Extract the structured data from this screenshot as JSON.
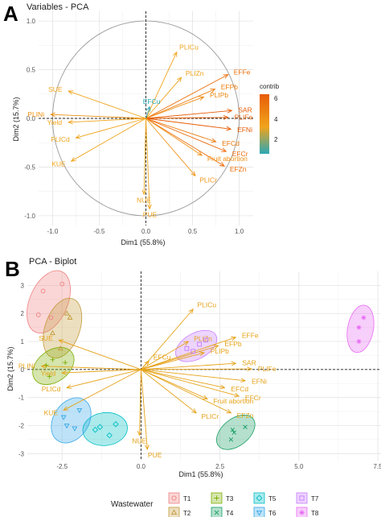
{
  "figure_label_a": "A",
  "figure_label_b": "B",
  "chart_data": [
    {
      "type": "scatter",
      "title": "Variables - PCA",
      "xlabel": "Dim1 (55.8%)",
      "ylabel": "Dim2 (15.7%)",
      "xlim": [
        -1.15,
        1.15
      ],
      "ylim": [
        -1.1,
        1.1
      ],
      "xticks": [
        -1.0,
        -0.5,
        0.0,
        0.5,
        1.0
      ],
      "yticks": [
        -1.0,
        -0.5,
        0.0,
        0.5,
        1.0
      ],
      "xtick_labels": [
        "-1.0",
        "-0.5",
        "0.0",
        "0.5",
        "1.0"
      ],
      "ytick_labels": [
        "-1.0",
        "-0.5",
        "0.0",
        "0.5",
        "1.0"
      ],
      "grid": true,
      "correlation_circle": true,
      "legend": {
        "title": "contrib",
        "position": "right",
        "ticks": [
          "6",
          "4",
          "2"
        ],
        "low_color": "#2aa8b5",
        "mid_color": "#f0a41c",
        "high_color": "#e85c07"
      },
      "variables": [
        {
          "name": "PLICu",
          "x": 0.33,
          "y": 0.68,
          "contrib": 3.2,
          "color": "#f0a41c"
        },
        {
          "name": "PLIZn",
          "x": 0.38,
          "y": 0.42,
          "contrib": 3.6,
          "color": "#f0a41c"
        },
        {
          "name": "EFFe",
          "x": 0.88,
          "y": 0.45,
          "contrib": 5.9,
          "color": "#ec6e0a"
        },
        {
          "name": "EFPb",
          "x": 0.74,
          "y": 0.3,
          "contrib": 5.0,
          "color": "#ee7f0e"
        },
        {
          "name": "PLIPb",
          "x": 0.62,
          "y": 0.22,
          "contrib": 4.6,
          "color": "#ef8c12"
        },
        {
          "name": "SAR",
          "x": 0.92,
          "y": 0.08,
          "contrib": 6.1,
          "color": "#e85c07"
        },
        {
          "name": "PLIFe",
          "x": 0.88,
          "y": 0.01,
          "contrib": 6.0,
          "color": "#e96208"
        },
        {
          "name": "EFNi",
          "x": 0.91,
          "y": -0.11,
          "contrib": 6.1,
          "color": "#e85c07"
        },
        {
          "name": "EFCd",
          "x": 0.75,
          "y": -0.24,
          "contrib": 5.2,
          "color": "#ed7a0d"
        },
        {
          "name": "EFCr",
          "x": 0.86,
          "y": -0.34,
          "contrib": 5.8,
          "color": "#ec6a0a"
        },
        {
          "name": "EFZn",
          "x": 0.84,
          "y": -0.49,
          "contrib": 5.6,
          "color": "#ec6e0a"
        },
        {
          "name": "Fruit abortion",
          "x": 0.6,
          "y": -0.38,
          "contrib": 4.3,
          "color": "#ef9012"
        },
        {
          "name": "PLICr",
          "x": 0.53,
          "y": -0.59,
          "contrib": 4.1,
          "color": "#f0961a"
        },
        {
          "name": "EFCu",
          "x": 0.04,
          "y": 0.12,
          "contrib": 1.5,
          "color": "#2aa8b5"
        },
        {
          "name": "NUE",
          "x": -0.02,
          "y": -0.78,
          "contrib": 3.3,
          "color": "#f0a41c"
        },
        {
          "name": "PUE",
          "x": 0.04,
          "y": -0.93,
          "contrib": 3.7,
          "color": "#f0a41c"
        },
        {
          "name": "SUE",
          "x": -0.83,
          "y": 0.28,
          "contrib": 3.4,
          "color": "#f0a41c"
        },
        {
          "name": "PLINi",
          "x": -1.02,
          "y": 0.04,
          "contrib": 4.3,
          "color": "#ef9012"
        },
        {
          "name": "Yield",
          "x": -0.83,
          "y": -0.04,
          "contrib": 3.3,
          "color": "#f0a41c"
        },
        {
          "name": "PLICd",
          "x": -0.75,
          "y": -0.2,
          "contrib": 2.7,
          "color": "#f0a41c"
        },
        {
          "name": "KUE",
          "x": -0.8,
          "y": -0.44,
          "contrib": 3.5,
          "color": "#f0a41c"
        }
      ]
    },
    {
      "type": "scatter",
      "title": "PCA - Biplot",
      "xlabel": "Dim1 (55.8%)",
      "ylabel": "Dim2 (15.7%)",
      "xlim": [
        -3.6,
        7.6
      ],
      "ylim": [
        -3.25,
        3.5
      ],
      "xticks": [
        -2.5,
        0.0,
        2.5,
        5.0,
        7.5
      ],
      "yticks": [
        -3,
        -2,
        -1,
        0,
        1,
        2,
        3
      ],
      "xtick_labels": [
        "-2.5",
        "0.0",
        "2.5",
        "5.0",
        "7.5"
      ],
      "ytick_labels": [
        "-3",
        "-2",
        "-1",
        "0",
        "1",
        "2",
        "3"
      ],
      "grid": true,
      "legend": {
        "title": "Wastewater",
        "position": "bottom"
      },
      "groups": [
        {
          "name": "T1",
          "color": "#f08080",
          "symbol": "circle",
          "points": [
            [
              -3.1,
              2.8
            ],
            [
              -2.5,
              3.05
            ],
            [
              -3.25,
              1.95
            ],
            [
              -2.85,
              1.85
            ]
          ]
        },
        {
          "name": "T2",
          "color": "#c49a3c",
          "symbol": "triangle",
          "points": [
            [
              -2.35,
              2.0
            ],
            [
              -2.25,
              1.85
            ],
            [
              -2.55,
              0.75
            ],
            [
              -2.8,
              1.3
            ]
          ]
        },
        {
          "name": "T3",
          "color": "#7cae00",
          "symbol": "plus",
          "points": [
            [
              -2.8,
              0.35
            ],
            [
              -3.0,
              0.15
            ],
            [
              -2.9,
              -0.25
            ],
            [
              -2.4,
              0.25
            ]
          ]
        },
        {
          "name": "T4",
          "color": "#1a9e65",
          "symbol": "x",
          "points": [
            [
              2.9,
              -2.15
            ],
            [
              2.95,
              -2.25
            ],
            [
              3.3,
              -2.05
            ],
            [
              2.85,
              -2.5
            ]
          ]
        },
        {
          "name": "T5",
          "color": "#00bfc4",
          "symbol": "diamond",
          "points": [
            [
              -1.3,
              -2.05
            ],
            [
              -0.8,
              -1.95
            ],
            [
              -1.0,
              -2.35
            ],
            [
              -1.45,
              -2.15
            ]
          ]
        },
        {
          "name": "T6",
          "color": "#35a7e8",
          "symbol": "triangle-down",
          "points": [
            [
              -2.35,
              -2.0
            ],
            [
              -1.95,
              -1.45
            ],
            [
              -2.45,
              -1.7
            ],
            [
              -2.1,
              -2.1
            ]
          ]
        },
        {
          "name": "T7",
          "color": "#c77cff",
          "symbol": "square",
          "points": [
            [
              1.45,
              0.75
            ],
            [
              1.65,
              0.65
            ],
            [
              2.05,
              1.05
            ],
            [
              1.85,
              0.9
            ]
          ]
        },
        {
          "name": "T8",
          "color": "#e76bf3",
          "symbol": "star",
          "points": [
            [
              6.9,
              1.5
            ],
            [
              7.05,
              1.85
            ],
            [
              6.9,
              1.0
            ]
          ]
        }
      ],
      "variables": [
        {
          "name": "PLICu",
          "x": 1.65,
          "y": 2.15
        },
        {
          "name": "PLIZn",
          "x": 1.5,
          "y": 1.0
        },
        {
          "name": "EFFe",
          "x": 3.0,
          "y": 1.15
        },
        {
          "name": "EFPb",
          "x": 2.45,
          "y": 0.85
        },
        {
          "name": "PLIPb",
          "x": 2.0,
          "y": 0.6
        },
        {
          "name": "SAR",
          "x": 3.0,
          "y": 0.22
        },
        {
          "name": "PLIFe",
          "x": 3.5,
          "y": 0.02
        },
        {
          "name": "EFNi",
          "x": 3.3,
          "y": -0.4
        },
        {
          "name": "EFCd",
          "x": 2.65,
          "y": -0.65
        },
        {
          "name": "EFCr",
          "x": 3.1,
          "y": -0.95
        },
        {
          "name": "EFZn",
          "x": 2.85,
          "y": -1.55
        },
        {
          "name": "Fruit abortion",
          "x": 2.1,
          "y": -1.05
        },
        {
          "name": "PLICr",
          "x": 1.75,
          "y": -1.55
        },
        {
          "name": "EFCu",
          "x": 0.25,
          "y": 0.3
        },
        {
          "name": "NUE",
          "x": -0.05,
          "y": -2.35
        },
        {
          "name": "PUE",
          "x": 0.2,
          "y": -2.85
        },
        {
          "name": "SUE",
          "x": -2.6,
          "y": 1.05
        },
        {
          "name": "PLINi",
          "x": -3.15,
          "y": 0.12
        },
        {
          "name": "Yield",
          "x": -2.5,
          "y": -0.12
        },
        {
          "name": "PLICd",
          "x": -2.35,
          "y": -0.65
        },
        {
          "name": "KUE",
          "x": -2.45,
          "y": -1.45
        }
      ],
      "variable_color": "#e6a31a"
    }
  ]
}
